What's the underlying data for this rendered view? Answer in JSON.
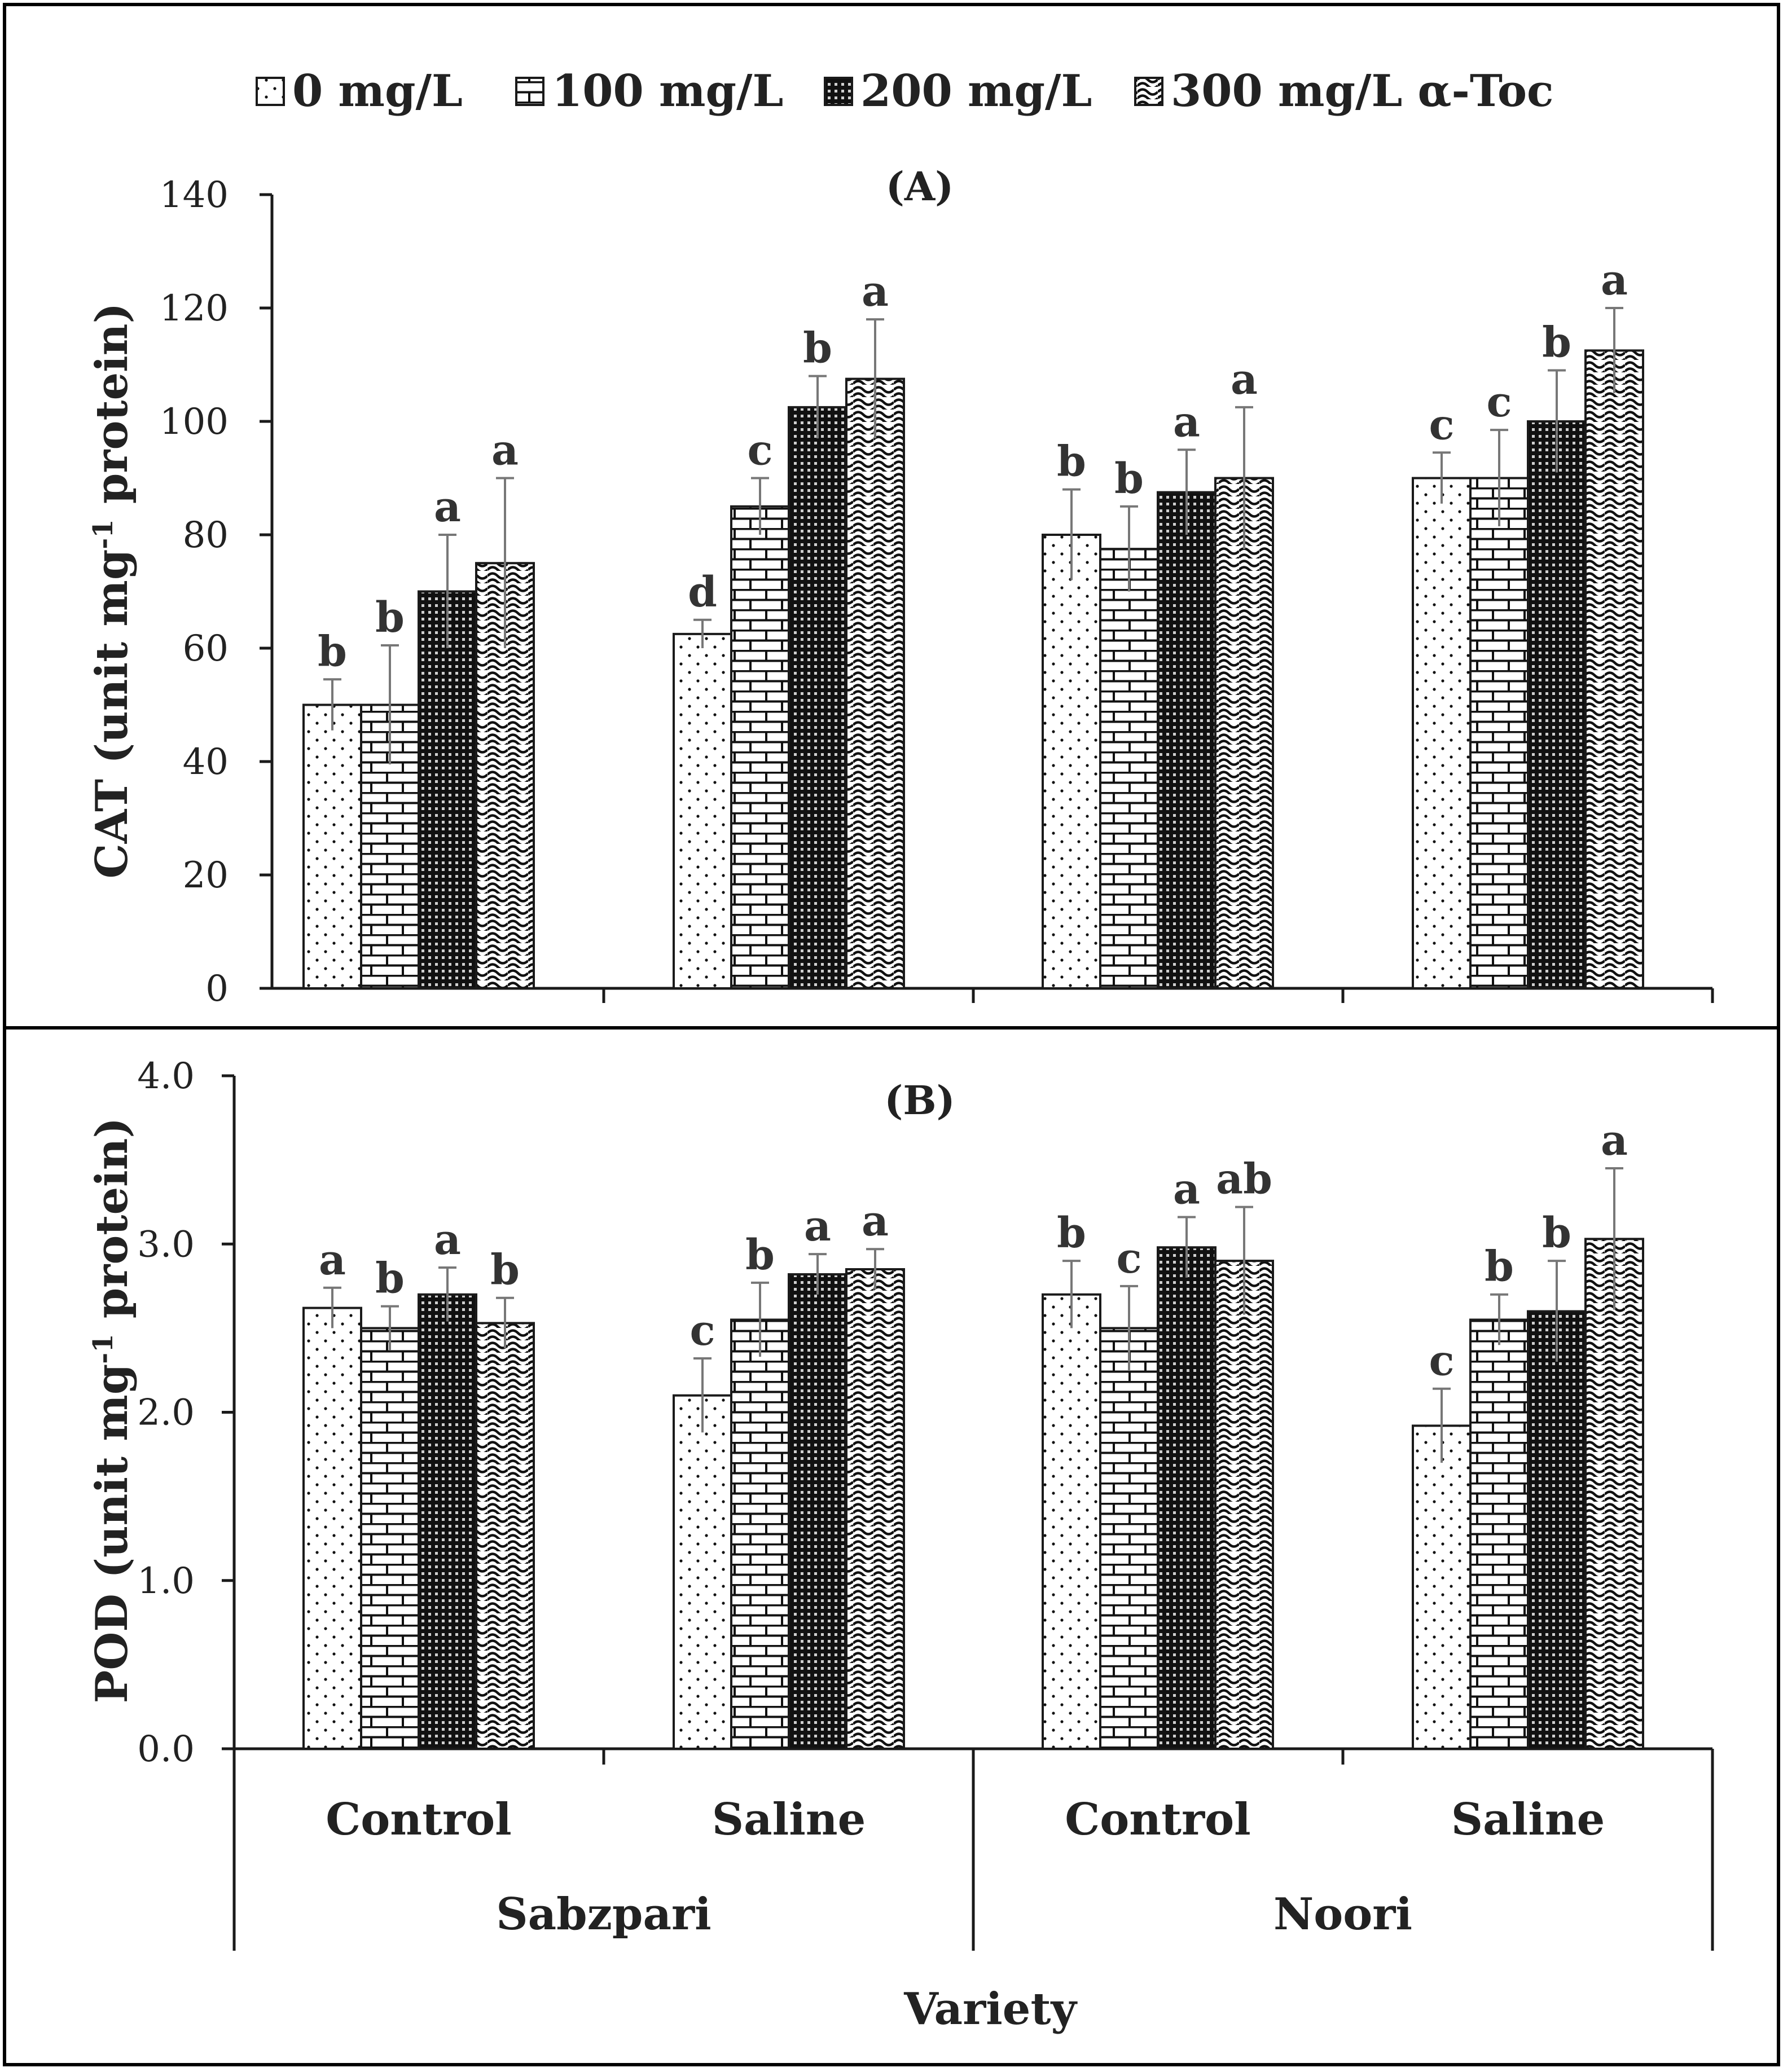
{
  "legend": {
    "items": [
      {
        "label": "0 mg/L",
        "pattern": "dots"
      },
      {
        "label": "100 mg/L",
        "pattern": "brick"
      },
      {
        "label": "200 mg/L",
        "pattern": "dense-grid"
      },
      {
        "label": "300 mg/L α-Toc",
        "pattern": "wave"
      }
    ]
  },
  "colors": {
    "bar_outline": "#1a1a1a",
    "pattern_ink": "#111111",
    "error_bar": "#777777",
    "axis": "#1a1a1a",
    "frame": "#000000",
    "background": "#ffffff"
  },
  "chart_data": [
    {
      "type": "bar",
      "title": "(A)",
      "ylabel": "CAT (unit mg-1 protein)",
      "ylabel_parts": {
        "before": "CAT (unit mg",
        "superscript": "-1",
        "after": " protein)"
      },
      "ylim": [
        0,
        140
      ],
      "yticks": [
        0,
        20,
        40,
        60,
        80,
        100,
        120,
        140
      ],
      "ytick_labels": [
        "0",
        "20",
        "40",
        "60",
        "80",
        "100",
        "120",
        "140"
      ],
      "grid": false,
      "legend_position": "top",
      "categories": [
        "Sabzpari / Control",
        "Sabzpari / Saline",
        "Noori / Control",
        "Noori / Saline"
      ],
      "series": [
        {
          "name": "0 mg/L",
          "values": [
            50,
            62.5,
            80,
            90
          ],
          "errors": [
            4.5,
            2.5,
            8,
            4.5
          ],
          "letters": [
            "b",
            "d",
            "b",
            "c"
          ]
        },
        {
          "name": "100 mg/L",
          "values": [
            50,
            85,
            77.5,
            90
          ],
          "errors": [
            10.5,
            5,
            7.5,
            8.5
          ],
          "letters": [
            "b",
            "c",
            "b",
            "c"
          ]
        },
        {
          "name": "200 mg/L",
          "values": [
            70,
            102.5,
            87.5,
            100
          ],
          "errors": [
            10,
            5.5,
            7.5,
            9
          ],
          "letters": [
            "a",
            "b",
            "a",
            "b"
          ]
        },
        {
          "name": "300 mg/L α-Toc",
          "values": [
            75,
            107.5,
            90,
            112.5
          ],
          "errors": [
            15,
            10.5,
            12.5,
            7.5
          ],
          "letters": [
            "a",
            "a",
            "a",
            "a"
          ]
        }
      ]
    },
    {
      "type": "bar",
      "title": "(B)",
      "ylabel": "POD (unit mg-1 protein)",
      "ylabel_parts": {
        "before": "POD (unit mg",
        "superscript": "-1",
        "after": " protein)"
      },
      "ylim": [
        0,
        4
      ],
      "yticks": [
        0,
        1,
        2,
        3,
        4
      ],
      "ytick_labels": [
        "0.0",
        "1.0",
        "2.0",
        "3.0",
        "4.0"
      ],
      "grid": false,
      "categories": [
        "Sabzpari / Control",
        "Sabzpari / Saline",
        "Noori / Control",
        "Noori / Saline"
      ],
      "series": [
        {
          "name": "0 mg/L",
          "values": [
            2.62,
            2.1,
            2.7,
            1.92
          ],
          "errors": [
            0.12,
            0.22,
            0.2,
            0.22
          ],
          "letters": [
            "a",
            "c",
            "b",
            "c"
          ]
        },
        {
          "name": "100 mg/L",
          "values": [
            2.5,
            2.55,
            2.5,
            2.55
          ],
          "errors": [
            0.13,
            0.22,
            0.25,
            0.15
          ],
          "letters": [
            "b",
            "b",
            "c",
            "b"
          ]
        },
        {
          "name": "200 mg/L",
          "values": [
            2.7,
            2.82,
            2.98,
            2.6
          ],
          "errors": [
            0.16,
            0.12,
            0.18,
            0.3
          ],
          "letters": [
            "a",
            "a",
            "a",
            "b"
          ]
        },
        {
          "name": "300 mg/L α-Toc",
          "values": [
            2.53,
            2.85,
            2.9,
            3.03
          ],
          "errors": [
            0.15,
            0.12,
            0.32,
            0.42
          ],
          "letters": [
            "b",
            "a",
            "ab",
            "a"
          ]
        }
      ]
    }
  ],
  "x_axis": {
    "treatments": [
      "Control",
      "Saline",
      "Control",
      "Saline"
    ],
    "varieties": [
      "Sabzpari",
      "Noori"
    ],
    "title": "Variety"
  }
}
